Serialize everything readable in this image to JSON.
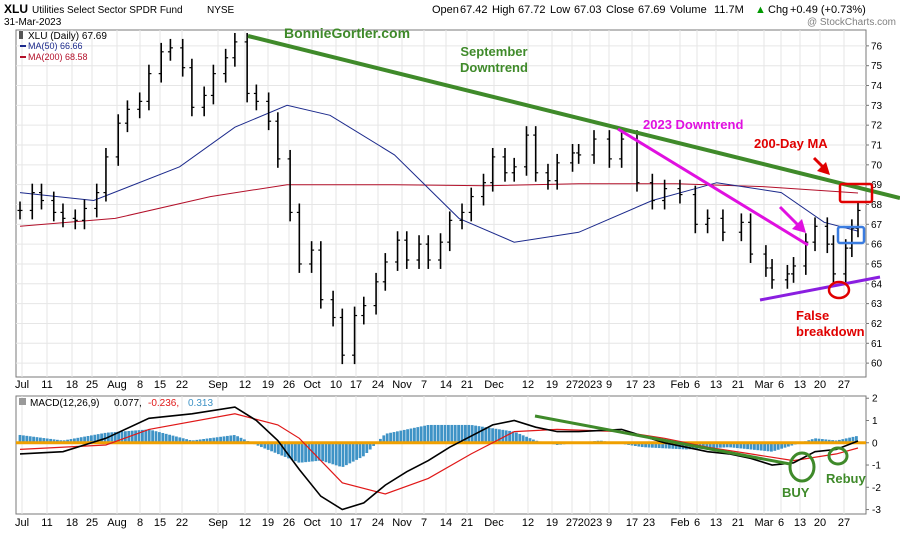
{
  "header": {
    "symbol": "XLU",
    "name": "Utilities Select Sector SPDR Fund",
    "exchange": "NYSE",
    "date": "31-Mar-2023",
    "open_label": "Open",
    "open": "67.42",
    "high_label": "High",
    "high": "67.72",
    "low_label": "Low",
    "low": "67.03",
    "close_label": "Close",
    "close": "67.69",
    "volume_label": "Volume",
    "volume": "11.7M",
    "chg_label": "Chg",
    "chg": "+0.49 (+0.73%)",
    "arrow": "▲",
    "watermark": "@ StockCharts.com"
  },
  "legend": {
    "price": "XLU (Daily) 67.69",
    "ma50": "MA(50) 66.66",
    "ma200": "MA(200) 68.58"
  },
  "macd_legend": {
    "title": "MACD(12,26,9)",
    "macd": "0.077,",
    "signal": "-0.236,",
    "hist": "0.313"
  },
  "annotations": {
    "site": "BonnieGortler.com",
    "sept_line1": "September",
    "sept_line2": "Downtrend",
    "y2023": "2023 Downtrend",
    "ma200": "200-Day MA",
    "false1": "False",
    "false2": "breakdown",
    "buy": "BUY",
    "rebuy": "Rebuy"
  },
  "colors": {
    "price": "#000000",
    "ma50": "#1c2a8c",
    "ma200": "#b3102a",
    "macd_line": "#000000",
    "signal_line": "#e01818",
    "histogram": "#3f93c6",
    "zero_line": "#f0a000",
    "sept_trend": "#3f8a2a",
    "trend_2023": "#e010e0",
    "support": "#8a1ee0",
    "red_annot": "#e00000",
    "blue_box": "#3a7ce0",
    "green_annot": "#3f8a2a"
  },
  "chart_data": [
    {
      "type": "ohlc",
      "title": "XLU Utilities Select Sector SPDR Fund NYSE",
      "ylim": [
        59.3,
        76.8
      ],
      "y_ticks": [
        60,
        61,
        62,
        63,
        64,
        65,
        66,
        67,
        68,
        69,
        70,
        71,
        72,
        73,
        74,
        75,
        76
      ],
      "x_tick_labels": [
        "Jul",
        "11",
        "18",
        "25",
        "Aug",
        "8",
        "15",
        "22",
        "Sep",
        "12",
        "19",
        "26",
        "Oct",
        "10",
        "17",
        "24",
        "Nov",
        "7",
        "14",
        "21",
        "Dec",
        "12",
        "19",
        "27",
        "2023",
        "9",
        "17",
        "23",
        "Feb",
        "6",
        "13",
        "21",
        "Mar",
        "6",
        "13",
        "20",
        "27"
      ],
      "series": [
        {
          "name": "XLU (Daily)",
          "points": [
            [
              "2022-07-01",
              67.7
            ],
            [
              "2022-07-05",
              68.6
            ],
            [
              "2022-07-08",
              68.2
            ],
            [
              "2022-07-12",
              67.6
            ],
            [
              "2022-07-15",
              67.3
            ],
            [
              "2022-07-19",
              67.2
            ],
            [
              "2022-07-22",
              67.8
            ],
            [
              "2022-07-26",
              68.6
            ],
            [
              "2022-07-29",
              70.4
            ],
            [
              "2022-08-02",
              72.1
            ],
            [
              "2022-08-05",
              72.8
            ],
            [
              "2022-08-09",
              73.2
            ],
            [
              "2022-08-12",
              74.6
            ],
            [
              "2022-08-16",
              75.7
            ],
            [
              "2022-08-19",
              75.9
            ],
            [
              "2022-08-23",
              74.9
            ],
            [
              "2022-08-26",
              72.9
            ],
            [
              "2022-08-30",
              73.5
            ],
            [
              "2022-09-02",
              74.6
            ],
            [
              "2022-09-06",
              75.4
            ],
            [
              "2022-09-09",
              76.2
            ],
            [
              "2022-09-13",
              73.6
            ],
            [
              "2022-09-16",
              73.2
            ],
            [
              "2022-09-20",
              72.2
            ],
            [
              "2022-09-23",
              70.3
            ],
            [
              "2022-09-27",
              67.6
            ],
            [
              "2022-09-30",
              65.0
            ],
            [
              "2022-10-04",
              65.7
            ],
            [
              "2022-10-07",
              63.2
            ],
            [
              "2022-10-11",
              62.3
            ],
            [
              "2022-10-14",
              60.4
            ],
            [
              "2022-10-18",
              62.4
            ],
            [
              "2022-10-21",
              62.9
            ],
            [
              "2022-10-25",
              64.1
            ],
            [
              "2022-10-28",
              65.1
            ],
            [
              "2022-11-01",
              66.2
            ],
            [
              "2022-11-04",
              65.2
            ],
            [
              "2022-11-08",
              66.0
            ],
            [
              "2022-11-11",
              65.2
            ],
            [
              "2022-11-15",
              66.1
            ],
            [
              "2022-11-18",
              67.2
            ],
            [
              "2022-11-22",
              67.6
            ],
            [
              "2022-11-25",
              68.4
            ],
            [
              "2022-11-29",
              69.1
            ],
            [
              "2022-12-02",
              70.4
            ],
            [
              "2022-12-06",
              69.6
            ],
            [
              "2022-12-09",
              69.9
            ],
            [
              "2022-12-13",
              71.5
            ],
            [
              "2022-12-16",
              69.6
            ],
            [
              "2022-12-20",
              69.2
            ],
            [
              "2022-12-23",
              70.1
            ],
            [
              "2022-12-28",
              70.6
            ],
            [
              "2022-12-30",
              70.5
            ],
            [
              "2023-01-04",
              71.3
            ],
            [
              "2023-01-09",
              70.3
            ],
            [
              "2023-01-13",
              71.3
            ],
            [
              "2023-01-18",
              69.1
            ],
            [
              "2023-01-23",
              68.2
            ],
            [
              "2023-01-27",
              68.8
            ],
            [
              "2023-02-01",
              68.5
            ],
            [
              "2023-02-06",
              67.0
            ],
            [
              "2023-02-10",
              67.3
            ],
            [
              "2023-02-15",
              66.6
            ],
            [
              "2023-02-21",
              67.1
            ],
            [
              "2023-02-24",
              65.5
            ],
            [
              "2023-03-01",
              64.8
            ],
            [
              "2023-03-03",
              64.2
            ],
            [
              "2023-03-08",
              64.5
            ],
            [
              "2023-03-10",
              64.9
            ],
            [
              "2023-03-14",
              66.1
            ],
            [
              "2023-03-17",
              66.9
            ],
            [
              "2023-03-21",
              66.0
            ],
            [
              "2023-03-23",
              64.5
            ],
            [
              "2023-03-27",
              65.8
            ],
            [
              "2023-03-29",
              66.8
            ],
            [
              "2023-03-31",
              67.7
            ]
          ]
        },
        {
          "name": "MA(50)",
          "points": [
            [
              "2022-07-01",
              68.6
            ],
            [
              "2022-07-25",
              68.2
            ],
            [
              "2022-08-22",
              69.9
            ],
            [
              "2022-09-09",
              71.9
            ],
            [
              "2022-09-26",
              73.0
            ],
            [
              "2022-10-10",
              72.5
            ],
            [
              "2022-10-31",
              70.5
            ],
            [
              "2022-11-21",
              67.3
            ],
            [
              "2022-12-09",
              66.1
            ],
            [
              "2022-12-30",
              66.6
            ],
            [
              "2023-01-23",
              68.2
            ],
            [
              "2023-02-13",
              69.1
            ],
            [
              "2023-03-06",
              68.6
            ],
            [
              "2023-03-20",
              67.1
            ],
            [
              "2023-03-31",
              66.66
            ]
          ]
        },
        {
          "name": "MA(200)",
          "points": [
            [
              "2022-07-01",
              66.9
            ],
            [
              "2022-08-01",
              67.3
            ],
            [
              "2022-09-01",
              68.4
            ],
            [
              "2022-09-26",
              69.0
            ],
            [
              "2022-10-31",
              69.0
            ],
            [
              "2022-11-30",
              68.95
            ],
            [
              "2022-12-30",
              69.05
            ],
            [
              "2023-01-31",
              69.05
            ],
            [
              "2023-02-28",
              68.9
            ],
            [
              "2023-03-31",
              68.58
            ]
          ]
        }
      ]
    },
    {
      "type": "line",
      "title": "MACD(12,26,9)",
      "ylim": [
        -3.2,
        2.1
      ],
      "y_ticks": [
        -3,
        -2,
        -1,
        0,
        1,
        2
      ],
      "series": [
        {
          "name": "MACD",
          "points": [
            [
              "2022-07-01",
              -0.5
            ],
            [
              "2022-07-15",
              -0.4
            ],
            [
              "2022-07-29",
              0.2
            ],
            [
              "2022-08-12",
              1.1
            ],
            [
              "2022-08-26",
              1.3
            ],
            [
              "2022-09-09",
              1.6
            ],
            [
              "2022-09-16",
              1.0
            ],
            [
              "2022-09-23",
              0.1
            ],
            [
              "2022-09-30",
              -1.2
            ],
            [
              "2022-10-07",
              -2.4
            ],
            [
              "2022-10-14",
              -3.0
            ],
            [
              "2022-10-21",
              -2.7
            ],
            [
              "2022-10-28",
              -1.9
            ],
            [
              "2022-11-04",
              -1.3
            ],
            [
              "2022-11-11",
              -0.8
            ],
            [
              "2022-11-18",
              -0.2
            ],
            [
              "2022-11-25",
              0.3
            ],
            [
              "2022-12-02",
              0.8
            ],
            [
              "2022-12-09",
              1.0
            ],
            [
              "2022-12-16",
              0.7
            ],
            [
              "2022-12-23",
              0.5
            ],
            [
              "2022-12-30",
              0.5
            ],
            [
              "2023-01-13",
              0.6
            ],
            [
              "2023-01-20",
              0.3
            ],
            [
              "2023-01-27",
              0.0
            ],
            [
              "2023-02-03",
              -0.2
            ],
            [
              "2023-02-10",
              -0.4
            ],
            [
              "2023-02-17",
              -0.5
            ],
            [
              "2023-02-24",
              -0.7
            ],
            [
              "2023-03-03",
              -1.0
            ],
            [
              "2023-03-10",
              -0.9
            ],
            [
              "2023-03-17",
              -0.4
            ],
            [
              "2023-03-24",
              -0.3
            ],
            [
              "2023-03-31",
              0.077
            ]
          ]
        },
        {
          "name": "Signal",
          "points": [
            [
              "2022-07-01",
              -0.3
            ],
            [
              "2022-07-29",
              -0.1
            ],
            [
              "2022-08-12",
              0.6
            ],
            [
              "2022-09-09",
              1.3
            ],
            [
              "2022-09-23",
              0.8
            ],
            [
              "2022-09-30",
              0.2
            ],
            [
              "2022-10-14",
              -1.8
            ],
            [
              "2022-10-28",
              -2.3
            ],
            [
              "2022-11-11",
              -1.6
            ],
            [
              "2022-11-25",
              -0.5
            ],
            [
              "2022-12-09",
              0.5
            ],
            [
              "2022-12-23",
              0.6
            ],
            [
              "2023-01-13",
              0.5
            ],
            [
              "2023-01-27",
              0.2
            ],
            [
              "2023-02-10",
              -0.2
            ],
            [
              "2023-02-24",
              -0.5
            ],
            [
              "2023-03-10",
              -0.8
            ],
            [
              "2023-03-24",
              -0.5
            ],
            [
              "2023-03-31",
              -0.236
            ]
          ]
        },
        {
          "name": "Histogram",
          "points": [
            [
              "2022-07-01",
              0.35
            ],
            [
              "2022-07-15",
              0.1
            ],
            [
              "2022-07-29",
              0.45
            ],
            [
              "2022-08-12",
              0.6
            ],
            [
              "2022-08-26",
              0.1
            ],
            [
              "2022-09-09",
              0.35
            ],
            [
              "2022-09-16",
              -0.1
            ],
            [
              "2022-09-30",
              -0.9
            ],
            [
              "2022-10-07",
              -0.8
            ],
            [
              "2022-10-14",
              -1.1
            ],
            [
              "2022-10-21",
              -0.6
            ],
            [
              "2022-10-28",
              0.4
            ],
            [
              "2022-11-11",
              0.8
            ],
            [
              "2022-11-25",
              0.8
            ],
            [
              "2022-12-09",
              0.5
            ],
            [
              "2022-12-16",
              0.1
            ],
            [
              "2022-12-23",
              -0.1
            ],
            [
              "2023-01-06",
              0.1
            ],
            [
              "2023-01-20",
              -0.2
            ],
            [
              "2023-02-03",
              -0.3
            ],
            [
              "2023-02-17",
              -0.2
            ],
            [
              "2023-03-03",
              -0.4
            ],
            [
              "2023-03-10",
              -0.1
            ],
            [
              "2023-03-17",
              0.2
            ],
            [
              "2023-03-24",
              0.1
            ],
            [
              "2023-03-31",
              0.313
            ]
          ]
        }
      ]
    }
  ]
}
